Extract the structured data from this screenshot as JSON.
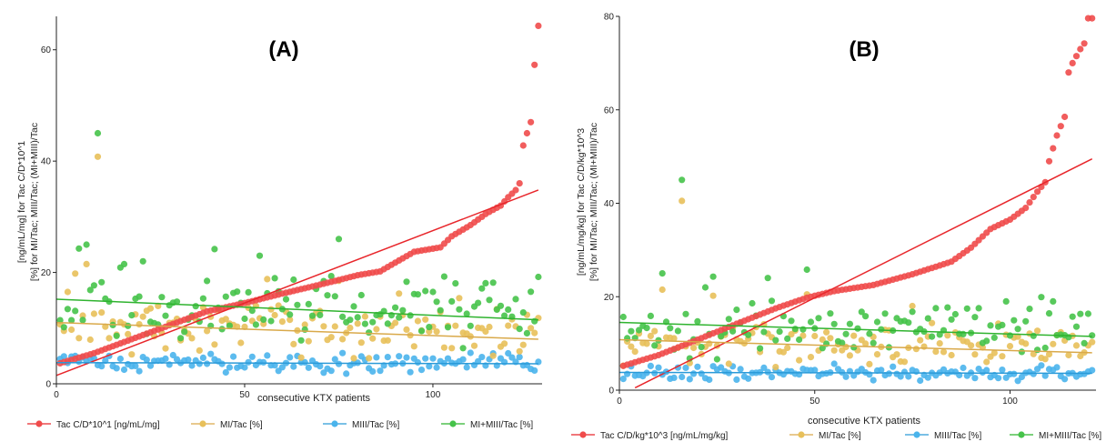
{
  "colors": {
    "red": "#f04b4b",
    "yellow": "#e8c05a",
    "blue": "#4ab4ec",
    "green": "#46c34a",
    "redLine": "#e8262b",
    "yellowLine": "#d9a94a",
    "blueLine": "#2a9ad8",
    "greenLine": "#2fb32f"
  },
  "chart_data": [
    {
      "type": "scatter",
      "title": "(A)",
      "xlabel": "consecutive KTX patients",
      "ylabel_lines": [
        "[ng/mL/mg] for Tac C/D*10^1",
        "[%] for MI/Tac; MIII/Tac; (MI+MIII)/Tac"
      ],
      "xlim": [
        0,
        129
      ],
      "ylim": [
        0,
        66
      ],
      "xticks": [
        0,
        50,
        100
      ],
      "yticks": [
        0,
        20,
        40,
        60
      ],
      "n": 128,
      "legend": [
        "Tac C/D*10^1 [ng/mL/mg]",
        "MI/Tac [%]",
        "MIII/Tac [%]",
        "MI+MIII/Tac [%]"
      ],
      "series": [
        {
          "name": "Tac C/D*10^1 [ng/mL/mg]",
          "kind": "sorted",
          "anchors": [
            [
              1,
              3.7
            ],
            [
              10,
              5.5
            ],
            [
              20,
              8
            ],
            [
              30,
              10.5
            ],
            [
              40,
              13
            ],
            [
              50,
              14.5
            ],
            [
              60,
              16.2
            ],
            [
              70,
              17.8
            ],
            [
              80,
              19.5
            ],
            [
              86,
              20.2
            ],
            [
              95,
              23.7
            ],
            [
              102,
              24.5
            ],
            [
              105,
              26.5
            ],
            [
              110,
              28.5
            ],
            [
              114,
              30.5
            ],
            [
              118,
              32
            ],
            [
              120,
              33.5
            ],
            [
              122,
              34.8
            ],
            [
              123,
              36
            ],
            [
              124,
              42.8
            ],
            [
              125,
              45
            ],
            [
              126,
              47
            ],
            [
              127,
              57.3
            ],
            [
              128,
              64.3
            ]
          ],
          "fit": [
            [
              0,
              1.5
            ],
            [
              128,
              34.8
            ]
          ]
        },
        {
          "name": "MI/Tac [%]",
          "kind": "scatter",
          "mean": 10,
          "spread": 4.5,
          "outliers": [
            [
              11,
              40.8
            ],
            [
              8,
              21.5
            ],
            [
              5,
              19.8
            ],
            [
              3,
              16.5
            ],
            [
              75,
              18.5
            ],
            [
              56,
              18.8
            ]
          ],
          "fit": [
            [
              0,
              11
            ],
            [
              128,
              8
            ]
          ]
        },
        {
          "name": "MIII/Tac [%]",
          "kind": "scatter",
          "mean": 3.8,
          "spread": 1.6,
          "outliers": [],
          "fit": [
            [
              0,
              3.8
            ],
            [
              128,
              3.6
            ]
          ]
        },
        {
          "name": "MI+MIII/Tac [%]",
          "kind": "scatter",
          "mean": 13.5,
          "spread": 5.5,
          "outliers": [
            [
              11,
              45
            ],
            [
              8,
              25
            ],
            [
              6,
              24.3
            ],
            [
              42,
              24.2
            ],
            [
              75,
              26
            ],
            [
              23,
              22
            ],
            [
              18,
              21.5
            ],
            [
              54,
              23
            ],
            [
              128,
              19.2
            ]
          ],
          "fit": [
            [
              0,
              15.2
            ],
            [
              128,
              11.5
            ]
          ]
        }
      ]
    },
    {
      "type": "scatter",
      "title": "(B)",
      "xlabel": "consecutive KTX patients",
      "ylabel_lines": [
        "[ng/mL/mg/kg] for Tac C/D/kg*10^3",
        "[%] for MI/Tac; MIII/Tac; (MI+MIII)/Tac"
      ],
      "xlim": [
        0,
        122
      ],
      "ylim": [
        0,
        80
      ],
      "xticks": [
        0,
        50,
        100
      ],
      "yticks": [
        0,
        20,
        40,
        60,
        80
      ],
      "n": 121,
      "legend": [
        "Tac C/D/kg*10^3 [ng/mL/mg/kg]",
        "MI/Tac [%]",
        "MIII/Tac [%]",
        "MI+MIII/Tac [%]"
      ],
      "series": [
        {
          "name": "Tac C/D/kg*10^3 [ng/mL/mg/kg]",
          "kind": "sorted",
          "anchors": [
            [
              1,
              5.2
            ],
            [
              10,
              7.5
            ],
            [
              20,
              10.8
            ],
            [
              30,
              14.2
            ],
            [
              40,
              17.5
            ],
            [
              48,
              19.8
            ],
            [
              55,
              21.2
            ],
            [
              65,
              22.5
            ],
            [
              75,
              24.8
            ],
            [
              85,
              27.5
            ],
            [
              90,
              30.5
            ],
            [
              95,
              34.5
            ],
            [
              100,
              36.5
            ],
            [
              104,
              39
            ],
            [
              107,
              42.5
            ],
            [
              109,
              44.5
            ],
            [
              110,
              49
            ],
            [
              112,
              54.5
            ],
            [
              113,
              56.5
            ],
            [
              114,
              58.5
            ],
            [
              115,
              68
            ],
            [
              116,
              70
            ],
            [
              117,
              71.5
            ],
            [
              118,
              73
            ],
            [
              119,
              74.2
            ],
            [
              120,
              79.6
            ]
          ],
          "fit": [
            [
              4,
              0.5
            ],
            [
              121,
              49.5
            ]
          ]
        },
        {
          "name": "MI/Tac [%]",
          "kind": "scatter",
          "mean": 10,
          "spread": 4.2,
          "outliers": [
            [
              16,
              40.5
            ],
            [
              11,
              21.5
            ],
            [
              24,
              20.2
            ],
            [
              75,
              18
            ],
            [
              48,
              20.5
            ]
          ],
          "fit": [
            [
              0,
              10.8
            ],
            [
              121,
              8
            ]
          ]
        },
        {
          "name": "MIII/Tac [%]",
          "kind": "scatter",
          "mean": 3.7,
          "spread": 1.5,
          "outliers": [],
          "fit": [
            [
              0,
              3.8
            ],
            [
              121,
              3.6
            ]
          ]
        },
        {
          "name": "MI+MIII/Tac [%]",
          "kind": "scatter",
          "mean": 13.2,
          "spread": 5.2,
          "outliers": [
            [
              16,
              45
            ],
            [
              11,
              25
            ],
            [
              24,
              24.3
            ],
            [
              48,
              25.8
            ],
            [
              38,
              24
            ],
            [
              99,
              19
            ],
            [
              111,
              19
            ],
            [
              22,
              22
            ]
          ],
          "fit": [
            [
              0,
              14.5
            ],
            [
              121,
              11.5
            ]
          ]
        }
      ]
    }
  ]
}
